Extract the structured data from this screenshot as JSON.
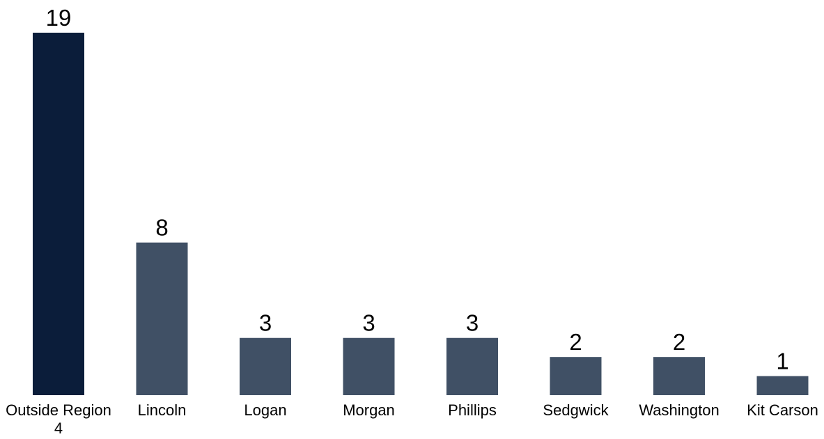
{
  "chart_data": {
    "type": "bar",
    "categories": [
      "Outside Region 4",
      "Lincoln",
      "Logan",
      "Morgan",
      "Phillips",
      "Sedgwick",
      "Washington",
      "Kit Carson"
    ],
    "values": [
      19,
      8,
      3,
      3,
      3,
      2,
      2,
      1
    ],
    "value_labels": [
      "19",
      "8",
      "3",
      "3",
      "3",
      "2",
      "2",
      "1"
    ],
    "ylim": [
      0,
      19
    ],
    "grid": false,
    "legend": "none",
    "colors": {
      "highlight": "#0b1d3a",
      "default": "#405065",
      "label_text": "#000000"
    },
    "bar_colors": [
      "highlight",
      "default",
      "default",
      "default",
      "default",
      "default",
      "default",
      "default"
    ]
  }
}
